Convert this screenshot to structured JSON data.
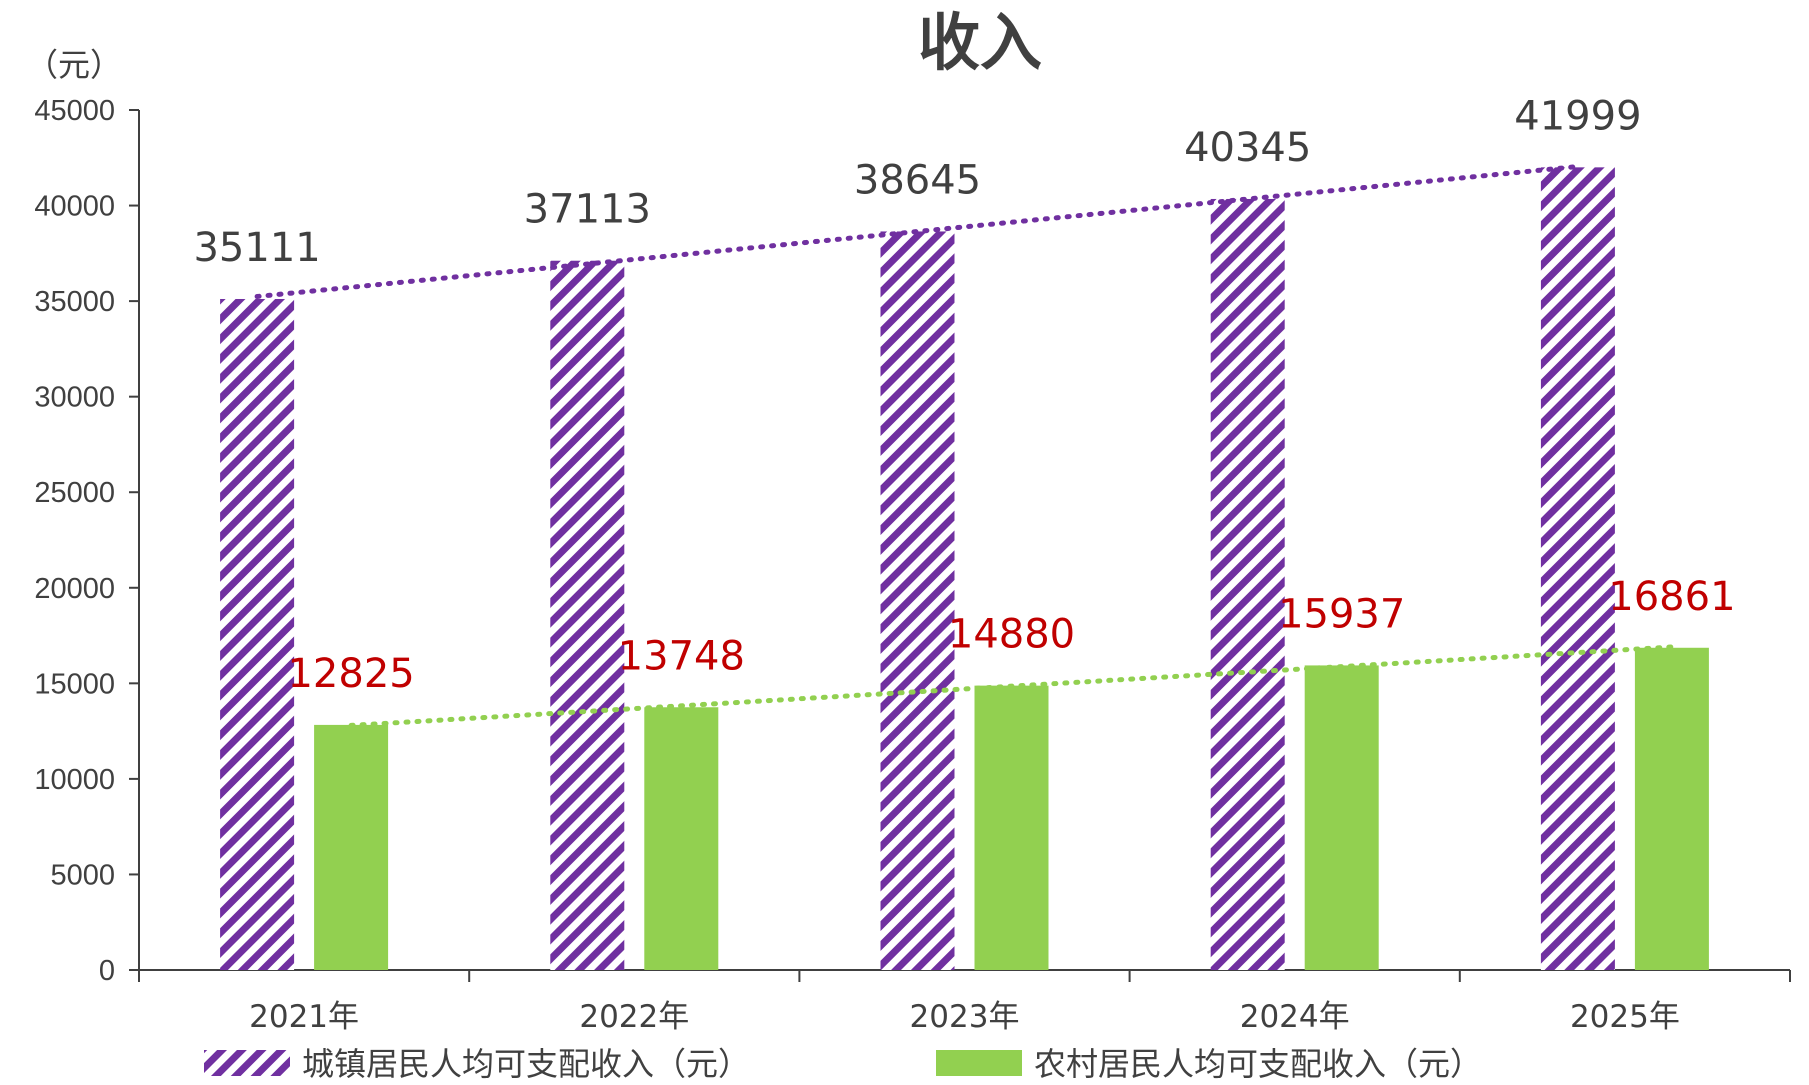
{
  "chart_data": {
    "type": "bar",
    "title": "收入",
    "ylabel": "（元）",
    "xlabel": "",
    "ylim": [
      0,
      45000
    ],
    "yticks": [
      0,
      5000,
      10000,
      15000,
      20000,
      25000,
      30000,
      35000,
      40000,
      45000
    ],
    "categories": [
      "2021年",
      "2022年",
      "2023年",
      "2024年",
      "2025年"
    ],
    "series": [
      {
        "name": "城镇居民人均可支配收入（元）",
        "values": [
          35111,
          37113,
          38645,
          40345,
          41999
        ],
        "color": "#7030a0",
        "pattern": "diagonal-stripes",
        "label_color": "#404040",
        "trendline": {
          "style": "dotted",
          "color": "#7030a0"
        }
      },
      {
        "name": "农村居民人均可支配收入（元）",
        "values": [
          12825,
          13748,
          14880,
          15937,
          16861
        ],
        "color": "#92d050",
        "pattern": "solid",
        "label_color": "#c00000",
        "trendline": {
          "style": "dotted",
          "color": "#92d050"
        }
      }
    ],
    "legend": "bottom",
    "grid": false
  }
}
